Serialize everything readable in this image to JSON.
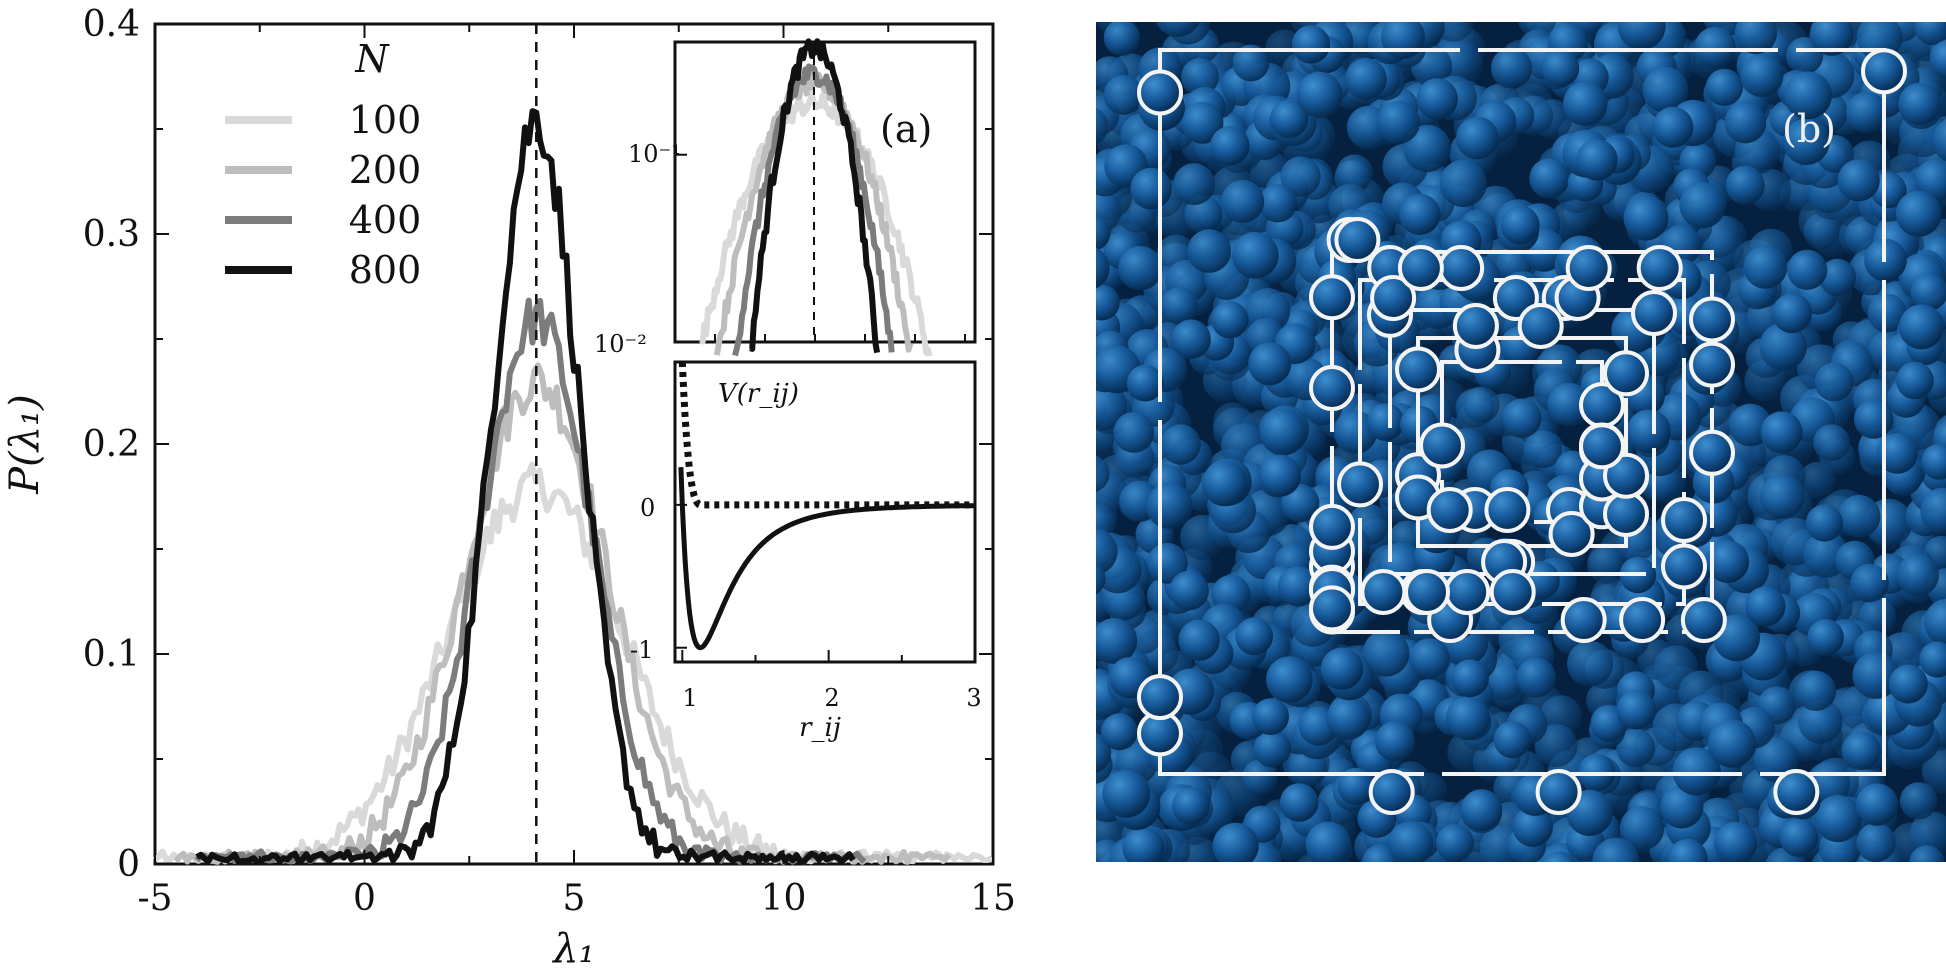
{
  "panels": {
    "a_label": "(a)",
    "b_label": "(b)"
  },
  "chart_data": [
    {
      "type": "line",
      "panel": "main",
      "xlabel": "λ₁",
      "ylabel": "P(λ₁)",
      "xlim": [
        -5,
        15
      ],
      "ylim": [
        0,
        0.4
      ],
      "xticks": [
        "-5",
        "0",
        "5",
        "10",
        "15"
      ],
      "yticks": [
        "0",
        "0.1",
        "0.2",
        "0.3",
        "0.4"
      ],
      "legend_title": "N",
      "legend_placement": "top-left",
      "vline_x": 4.1,
      "series": [
        {
          "name": "100",
          "color": "#d9d9d9",
          "mu": 4.1,
          "sigma": 2.1,
          "peak": 0.18,
          "x0": -5,
          "x1": 15
        },
        {
          "name": "200",
          "color": "#bdbdbd",
          "mu": 4.1,
          "sigma": 1.7,
          "peak": 0.23,
          "x0": -4.5,
          "x1": 14
        },
        {
          "name": "400",
          "color": "#7c7c7c",
          "mu": 4.1,
          "sigma": 1.35,
          "peak": 0.26,
          "x0": -4,
          "x1": 12
        },
        {
          "name": "800",
          "color": "#111111",
          "mu": 4.1,
          "sigma": 1.05,
          "peak": 0.355,
          "x0": -4,
          "x1": 11.7
        }
      ]
    },
    {
      "type": "line",
      "panel": "inset-a",
      "yscale": "log",
      "yticks": [
        "10⁻¹",
        "10⁻²"
      ],
      "ylim": [
        0.01,
        0.4
      ]
    },
    {
      "type": "line",
      "panel": "inset-potential",
      "xlabel": "r_ij",
      "ylabel": "V(r_ij)",
      "xlim": [
        0.95,
        3
      ],
      "ylim": [
        -1.1,
        1.0
      ],
      "xticks": [
        "1",
        "2",
        "3"
      ],
      "yticks": [
        "0",
        "-1"
      ],
      "series": [
        {
          "style": "solid",
          "kind": "lennard-jones",
          "r_min": 1.12
        },
        {
          "style": "dotted",
          "kind": "repulsive-wca",
          "r_cut": 1.12
        }
      ]
    }
  ]
}
